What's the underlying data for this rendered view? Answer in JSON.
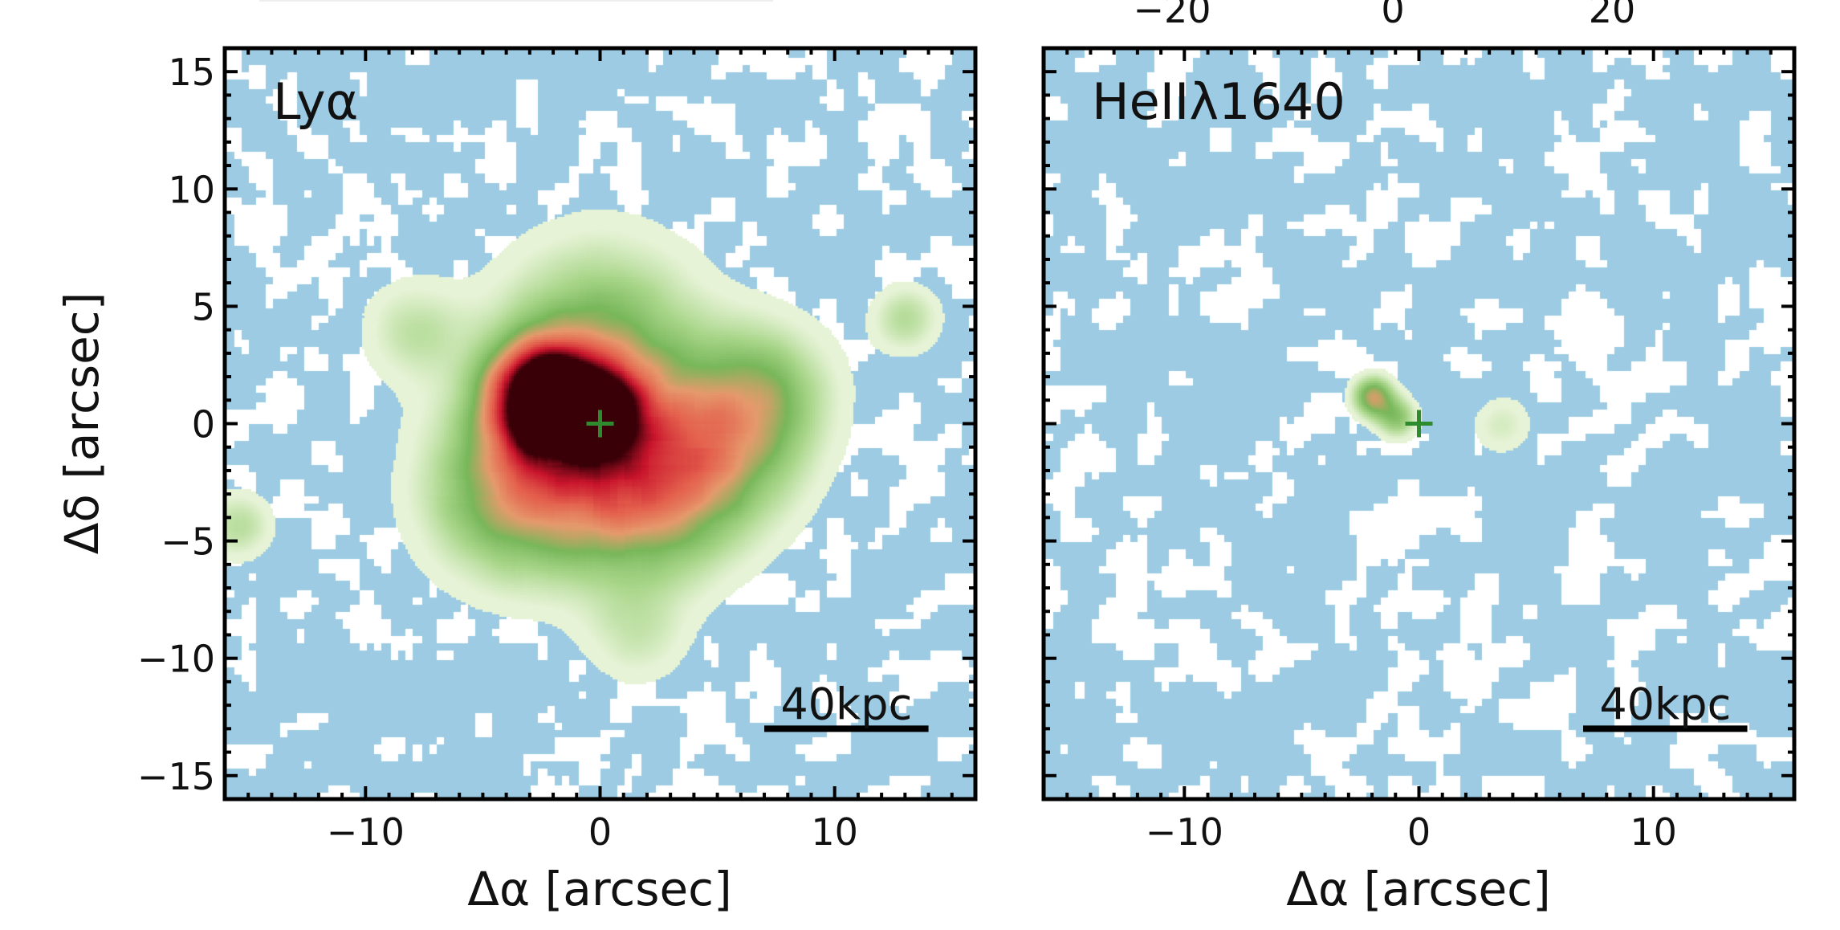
{
  "chart_data": [
    {
      "type": "heatmap",
      "panel_label": "Lyα",
      "xlabel": "Δα [arcsec]",
      "ylabel": "Δδ [arcsec]",
      "xlim": [
        -16,
        16
      ],
      "ylim": [
        -16,
        16
      ],
      "x_ticks": [
        -10,
        0,
        10
      ],
      "y_ticks": [
        -15,
        -10,
        -5,
        0,
        5,
        10,
        15
      ],
      "scale_bar": {
        "label": "40kpc",
        "x_start": 7,
        "x_end": 14,
        "y": -13
      },
      "center_marker": {
        "symbol": "+",
        "x": 0,
        "y": 0,
        "color": "#2e8b2e"
      },
      "emission": [
        {
          "x": -2.5,
          "y": 1.2,
          "amplitude": 1.0,
          "sigma": 1.5
        },
        {
          "x": 0.0,
          "y": 0.6,
          "amplitude": 0.55,
          "sigma": 1.3
        },
        {
          "x": -1.0,
          "y": -1.0,
          "amplitude": 0.45,
          "sigma": 3.0
        },
        {
          "x": 5.0,
          "y": -1.0,
          "amplitude": 0.4,
          "sigma": 2.4
        },
        {
          "x": 2.0,
          "y": -3.5,
          "amplitude": 0.35,
          "sigma": 2.5
        },
        {
          "x": -4.0,
          "y": -3.0,
          "amplitude": 0.35,
          "sigma": 2.5
        },
        {
          "x": 0.0,
          "y": 3.5,
          "amplitude": 0.35,
          "sigma": 3.0
        },
        {
          "x": 7.0,
          "y": 1.5,
          "amplitude": 0.28,
          "sigma": 2.0
        },
        {
          "x": 13.0,
          "y": 4.5,
          "amplitude": 0.22,
          "sigma": 1.0
        },
        {
          "x": -15.5,
          "y": -4.3,
          "amplitude": 0.22,
          "sigma": 1.0
        },
        {
          "x": -8.0,
          "y": 4.0,
          "amplitude": 0.18,
          "sigma": 1.5
        },
        {
          "x": 1.5,
          "y": -9.0,
          "amplitude": 0.14,
          "sigma": 1.5
        }
      ]
    },
    {
      "type": "heatmap",
      "panel_label": "HeIIλ1640",
      "xlabel": "Δα [arcsec]",
      "ylabel": "",
      "xlim": [
        -16,
        16
      ],
      "ylim": [
        -16,
        16
      ],
      "x_ticks": [
        -10,
        0,
        10
      ],
      "y_ticks": [
        -15,
        -10,
        -5,
        0,
        5,
        10,
        15
      ],
      "scale_bar": {
        "label": "40kpc",
        "x_start": 7,
        "x_end": 14,
        "y": -13
      },
      "center_marker": {
        "symbol": "+",
        "x": 0,
        "y": 0,
        "color": "#2e8b2e"
      },
      "emission": [
        {
          "x": -2.0,
          "y": 1.2,
          "amplitude": 0.5,
          "sigma": 0.6
        },
        {
          "x": -1.0,
          "y": 0.3,
          "amplitude": 0.33,
          "sigma": 0.6
        },
        {
          "x": 3.5,
          "y": 0.0,
          "amplitude": 0.14,
          "sigma": 0.9
        }
      ]
    }
  ],
  "top_axis": {
    "tick_labels": [
      "−20",
      "0",
      "20"
    ]
  },
  "colormap": {
    "background": "#ffffff",
    "noise_floor": "#9ccbe3",
    "stops": [
      "#e6f3d6",
      "#a9d68a",
      "#78b75a",
      "#e59a6c",
      "#e4604d",
      "#c9142c",
      "#3a0008"
    ]
  }
}
